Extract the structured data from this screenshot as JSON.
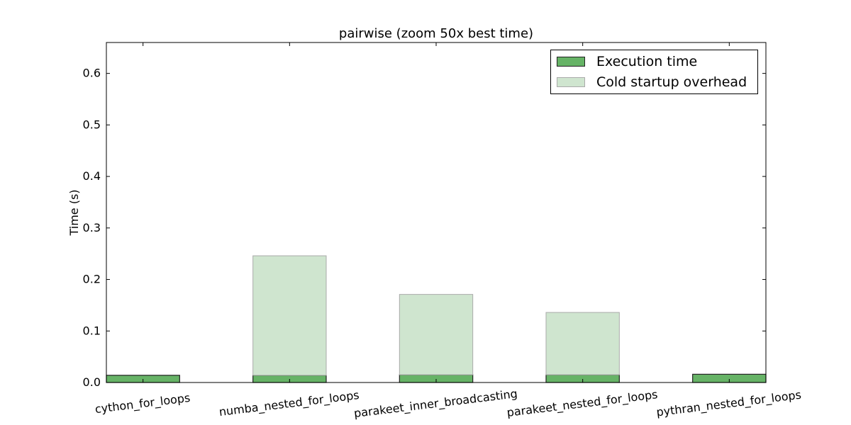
{
  "chart_data": {
    "type": "bar",
    "title": "pairwise (zoom 50x best time)",
    "xlabel": "",
    "ylabel": "Time (s)",
    "ylim": [
      0,
      0.66
    ],
    "yticks": [
      "0.0",
      "0.1",
      "0.2",
      "0.3",
      "0.4",
      "0.5",
      "0.6"
    ],
    "categories": [
      "cython_for_loops",
      "numba_nested_for_loops",
      "parakeet_inner_broadcasting",
      "parakeet_nested_for_loops",
      "pythran_nested_for_loops"
    ],
    "series": [
      {
        "name": "Execution time",
        "color": "#66b366",
        "edge": "#222222",
        "values": [
          0.014,
          0.014,
          0.015,
          0.015,
          0.016
        ]
      },
      {
        "name": "Cold startup overhead",
        "color": "#cfe5cf",
        "edge": "#aaaaaa",
        "values": [
          0.0,
          0.232,
          0.156,
          0.121,
          0.0
        ]
      }
    ],
    "stacked": true,
    "legend_position": "top-right",
    "grid": false
  }
}
